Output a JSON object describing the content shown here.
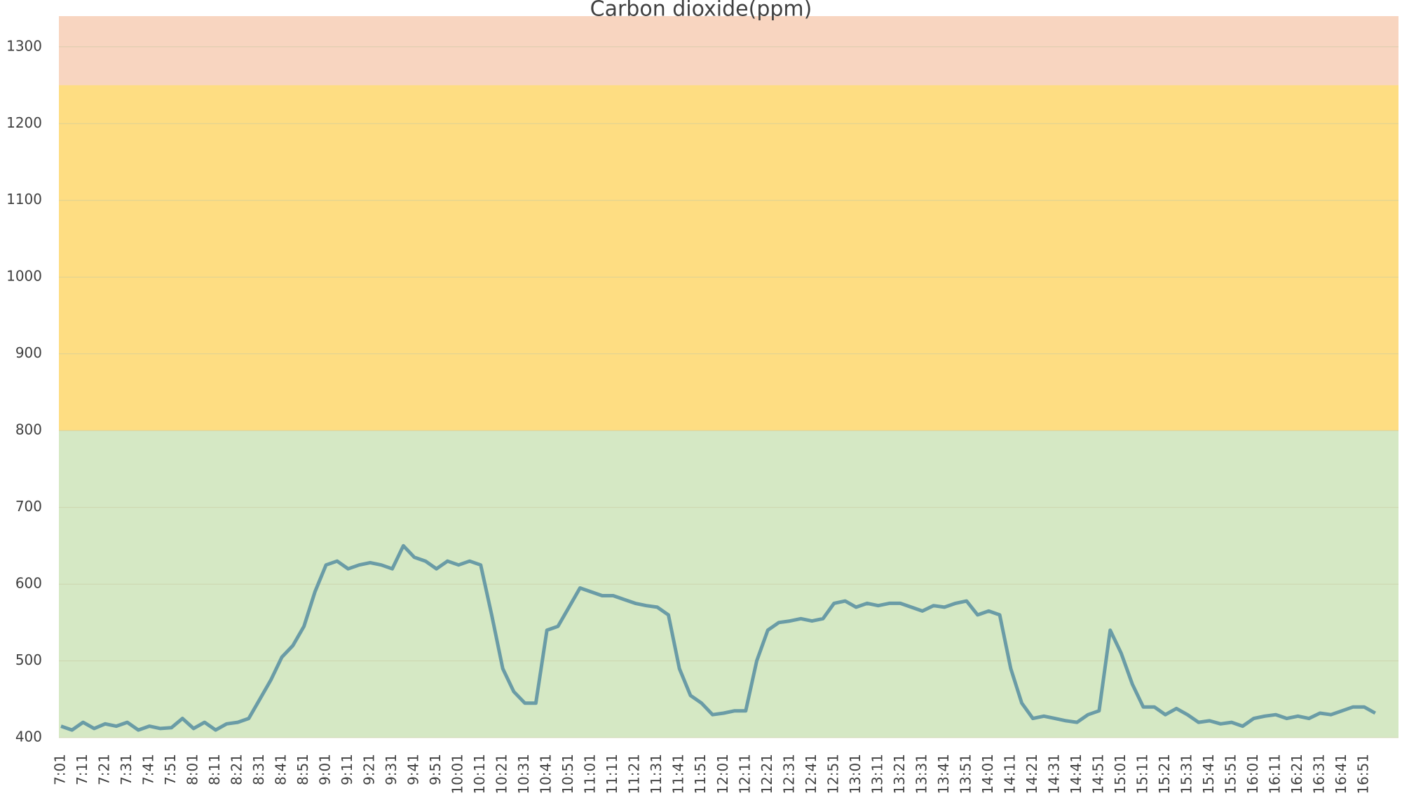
{
  "chart_data": {
    "type": "line",
    "title": "Carbon dioxide(ppm)",
    "categories": [
      "7:01",
      null,
      "7:11",
      null,
      "7:21",
      null,
      "7:31",
      null,
      "7:41",
      null,
      "7:51",
      null,
      "8:01",
      null,
      "8:11",
      null,
      "8:21",
      null,
      "8:31",
      null,
      "8:41",
      null,
      "8:51",
      null,
      "9:01",
      null,
      "9:11",
      null,
      "9:21",
      null,
      "9:31",
      null,
      "9:41",
      null,
      "9:51",
      null,
      "10:01",
      null,
      "10:11",
      null,
      "10:21",
      null,
      "10:31",
      null,
      "10:41",
      null,
      "10:51",
      null,
      "11:01",
      null,
      "11:11",
      null,
      "11:21",
      null,
      "11:31",
      null,
      "11:41",
      null,
      "11:51",
      null,
      "12:01",
      null,
      "12:11",
      null,
      "12:21",
      null,
      "12:31",
      null,
      "12:41",
      null,
      "12:51",
      null,
      "13:01",
      null,
      "13:11",
      null,
      "13:21",
      null,
      "13:31",
      null,
      "13:41",
      null,
      "13:51",
      null,
      "14:01",
      null,
      "14:11",
      null,
      "14:21",
      null,
      "14:31",
      null,
      "14:41",
      null,
      "14:51",
      null,
      "15:01",
      null,
      "15:11",
      null,
      "15:21",
      null,
      "15:31",
      null,
      "15:41",
      null,
      "15:51",
      null,
      "16:01",
      null,
      "16:11",
      null,
      "16:21",
      null,
      "16:31",
      null,
      "16:41",
      null,
      "16:51",
      null
    ],
    "series": [
      {
        "name": "Carbon dioxide(ppm)",
        "color": "#6a9ca6",
        "values": [
          415,
          410,
          420,
          412,
          418,
          415,
          420,
          410,
          415,
          412,
          413,
          425,
          412,
          420,
          410,
          418,
          420,
          425,
          450,
          475,
          505,
          520,
          545,
          590,
          625,
          630,
          620,
          625,
          628,
          625,
          620,
          650,
          635,
          630,
          620,
          630,
          625,
          630,
          625,
          560,
          490,
          460,
          445,
          445,
          540,
          545,
          570,
          595,
          590,
          585,
          585,
          580,
          575,
          572,
          570,
          560,
          490,
          455,
          445,
          430,
          432,
          435,
          435,
          500,
          540,
          550,
          552,
          555,
          552,
          555,
          575,
          578,
          570,
          575,
          572,
          575,
          575,
          570,
          565,
          572,
          570,
          575,
          578,
          560,
          565,
          560,
          490,
          445,
          425,
          428,
          425,
          422,
          420,
          430,
          435,
          540,
          510,
          470,
          440,
          440,
          430,
          438,
          430,
          420,
          422,
          418,
          420,
          415,
          425,
          428,
          430,
          425,
          428,
          425,
          432,
          430,
          435,
          440,
          440,
          432
        ]
      }
    ],
    "ylim": [
      400,
      1340
    ],
    "yticks": [
      400,
      500,
      600,
      700,
      800,
      900,
      1000,
      1100,
      1200,
      1300
    ],
    "grid": true,
    "bands": [
      {
        "from": 400,
        "to": 800,
        "color": "#d5e8c4"
      },
      {
        "from": 800,
        "to": 1250,
        "color": "#fedd82"
      },
      {
        "from": 1250,
        "to": 1340,
        "color": "#f8d5c0"
      }
    ]
  }
}
